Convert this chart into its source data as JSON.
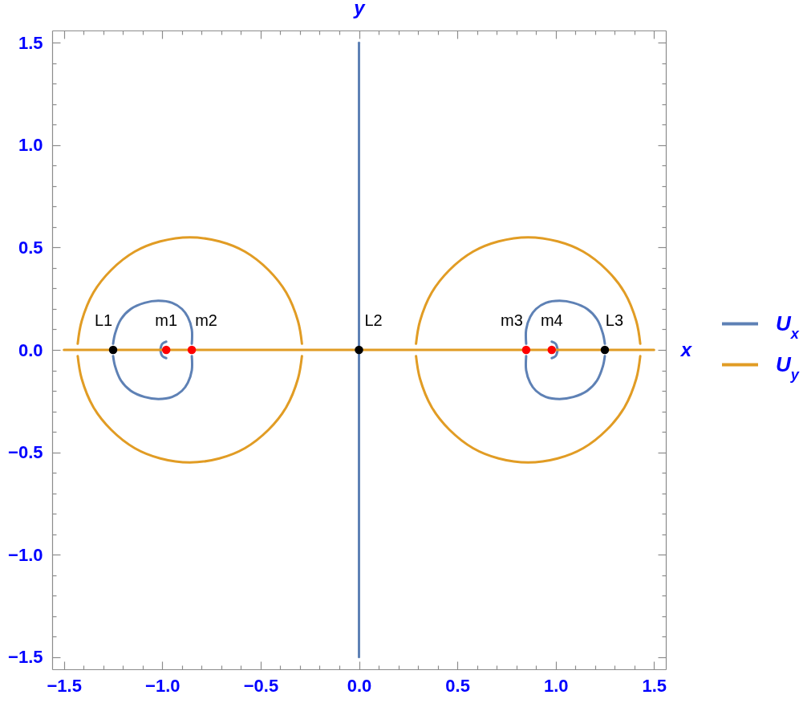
{
  "chart_data": {
    "type": "line",
    "xlabel": "x",
    "ylabel": "y",
    "legend": "right",
    "xlim": [
      -1.56,
      1.56
    ],
    "ylim": [
      -1.56,
      1.56
    ],
    "xticks": [
      {
        "value": -1.5,
        "label": "−1.5"
      },
      {
        "value": -1.4,
        "label": null
      },
      {
        "value": -1.3,
        "label": null
      },
      {
        "value": -1.2,
        "label": null
      },
      {
        "value": -1.1,
        "label": null
      },
      {
        "value": -1,
        "label": "−1.0"
      },
      {
        "value": -0.9,
        "label": null
      },
      {
        "value": -0.8,
        "label": null
      },
      {
        "value": -0.7,
        "label": null
      },
      {
        "value": -0.6,
        "label": null
      },
      {
        "value": -0.5,
        "label": "−0.5"
      },
      {
        "value": -0.4,
        "label": null
      },
      {
        "value": -0.3,
        "label": null
      },
      {
        "value": -0.2,
        "label": null
      },
      {
        "value": -0.1,
        "label": null
      },
      {
        "value": 0,
        "label": "0.0"
      },
      {
        "value": 0.1,
        "label": null
      },
      {
        "value": 0.2,
        "label": null
      },
      {
        "value": 0.3,
        "label": null
      },
      {
        "value": 0.4,
        "label": null
      },
      0.5,
      {
        "value": 0.6,
        "label": null
      },
      {
        "value": 0.7,
        "label": null
      },
      {
        "value": 0.8,
        "label": null
      },
      {
        "value": 0.9,
        "label": null
      },
      {
        "value": 1,
        "label": "1.0"
      },
      {
        "value": 1.1,
        "label": null
      },
      {
        "value": 1.2,
        "label": null
      },
      {
        "value": 1.3,
        "label": null
      },
      {
        "value": 1.4,
        "label": null
      },
      1.5
    ],
    "yticks": [
      {
        "value": -1.5,
        "label": "−1.5"
      },
      {
        "value": -1.4,
        "label": null
      },
      {
        "value": -1.3,
        "label": null
      },
      {
        "value": -1.2,
        "label": null
      },
      {
        "value": -1.1,
        "label": null
      },
      {
        "value": -1,
        "label": "−1.0"
      },
      {
        "value": -0.9,
        "label": null
      },
      {
        "value": -0.8,
        "label": null
      },
      {
        "value": -0.7,
        "label": null
      },
      {
        "value": -0.6,
        "label": null
      },
      {
        "value": -0.5,
        "label": "−0.5"
      },
      {
        "value": -0.4,
        "label": null
      },
      {
        "value": -0.3,
        "label": null
      },
      {
        "value": -0.2,
        "label": null
      },
      {
        "value": -0.1,
        "label": null
      },
      {
        "value": 0,
        "label": "0.0"
      },
      {
        "value": 0.1,
        "label": null
      },
      {
        "value": 0.2,
        "label": null
      },
      {
        "value": 0.3,
        "label": null
      },
      {
        "value": 0.4,
        "label": null
      },
      0.5,
      {
        "value": 0.6,
        "label": null
      },
      {
        "value": 0.7,
        "label": null
      },
      {
        "value": 0.8,
        "label": null
      },
      {
        "value": 0.9,
        "label": null
      },
      {
        "value": 1,
        "label": "1.0"
      },
      {
        "value": 1.1,
        "label": null
      },
      {
        "value": 1.2,
        "label": null
      },
      {
        "value": 1.3,
        "label": null
      },
      {
        "value": 1.4,
        "label": null
      },
      1.5
    ],
    "series": [
      {
        "name": "U$_{x}$",
        "color": "#5e81b5",
        "x": [
          0,
          0
        ],
        "values": [
          -1.5,
          1.5
        ]
      },
      {
        "color": "#5e81b5",
        "x": [
          -1.25,
          -1.24,
          -1.21,
          -1.16,
          -1.09,
          -1.02,
          -0.95,
          -0.9,
          -0.87,
          -0.85,
          -0.85
        ],
        "values": [
          0.03,
          0.08,
          0.15,
          0.2,
          0.23,
          0.24,
          0.23,
          0.2,
          0.16,
          0.1,
          0.03
        ]
      },
      {
        "color": "#5e81b5",
        "x": [
          -1.25,
          -1.24,
          -1.21,
          -1.16,
          -1.09,
          -1.02,
          -0.95,
          -0.9,
          -0.87,
          -0.85,
          -0.85
        ],
        "values": [
          -0.03,
          -0.08,
          -0.15,
          -0.2,
          -0.23,
          -0.24,
          -0.23,
          -0.2,
          -0.16,
          -0.1,
          -0.03
        ]
      },
      {
        "color": "#5e81b5",
        "x": [
          0.85,
          0.85,
          0.87,
          0.9,
          0.95,
          1.02,
          1.09,
          1.16,
          1.21,
          1.24,
          1.25
        ],
        "values": [
          0.03,
          0.1,
          0.16,
          0.2,
          0.23,
          0.24,
          0.23,
          0.2,
          0.15,
          0.08,
          0.03
        ]
      },
      {
        "color": "#5e81b5",
        "x": [
          0.85,
          0.85,
          0.87,
          0.9,
          0.95,
          1.02,
          1.09,
          1.16,
          1.21,
          1.24,
          1.25
        ],
        "values": [
          -0.03,
          -0.1,
          -0.16,
          -0.2,
          -0.23,
          -0.24,
          -0.23,
          -0.2,
          -0.15,
          -0.08,
          -0.03
        ]
      },
      {
        "color": "#5e81b5",
        "x": [
          -1.01,
          -1.0,
          -0.98
        ],
        "values": [
          0,
          0.03,
          0.04
        ]
      },
      {
        "color": "#5e81b5",
        "x": [
          -1.01,
          -1.0,
          -0.98
        ],
        "values": [
          0,
          -0.03,
          -0.04
        ]
      },
      {
        "color": "#5e81b5",
        "x": [
          0.98,
          1.0,
          1.01
        ],
        "values": [
          0.04,
          0.03,
          0
        ]
      },
      {
        "color": "#5e81b5",
        "x": [
          0.98,
          1.0,
          1.01
        ],
        "values": [
          -0.04,
          -0.03,
          0
        ]
      },
      {
        "name": "U$_{y}$",
        "color": "#e19c24",
        "x": [
          -1.5,
          1.5
        ],
        "values": [
          0,
          0
        ]
      },
      {
        "color": "#e19c24",
        "x": [
          -1.43,
          -1.41,
          -1.35,
          -1.26,
          -1.14,
          -1.01,
          -0.86,
          -0.71,
          -0.58,
          -0.46,
          -0.37,
          -0.31,
          -0.29
        ],
        "values": [
          0.03,
          0.14,
          0.28,
          0.39,
          0.48,
          0.53,
          0.55,
          0.53,
          0.48,
          0.39,
          0.28,
          0.14,
          0.03
        ]
      },
      {
        "color": "#e19c24",
        "x": [
          -1.43,
          -1.41,
          -1.35,
          -1.26,
          -1.14,
          -1.01,
          -0.86,
          -0.71,
          -0.58,
          -0.46,
          -0.37,
          -0.31,
          -0.29
        ],
        "values": [
          -0.03,
          -0.14,
          -0.28,
          -0.39,
          -0.48,
          -0.53,
          -0.55,
          -0.53,
          -0.48,
          -0.39,
          -0.28,
          -0.14,
          -0.03
        ]
      },
      {
        "color": "#e19c24",
        "x": [
          0.29,
          0.31,
          0.37,
          0.46,
          0.58,
          0.71,
          0.86,
          1.01,
          1.14,
          1.26,
          1.35,
          1.41,
          1.43
        ],
        "values": [
          0.03,
          0.14,
          0.28,
          0.39,
          0.48,
          0.53,
          0.55,
          0.53,
          0.48,
          0.39,
          0.28,
          0.14,
          0.03
        ]
      },
      {
        "color": "#e19c24",
        "x": [
          0.29,
          0.31,
          0.37,
          0.46,
          0.58,
          0.71,
          0.86,
          1.01,
          1.14,
          1.26,
          1.35,
          1.41,
          1.43
        ],
        "values": [
          -0.03,
          -0.14,
          -0.28,
          -0.39,
          -0.48,
          -0.53,
          -0.55,
          -0.53,
          -0.48,
          -0.39,
          -0.28,
          -0.14,
          -0.03
        ]
      },
      {
        "type": "scatter",
        "marker": "circle",
        "color": "#000000",
        "x": [
          -1.25,
          0,
          1.25
        ],
        "values": [
          0,
          0,
          0
        ]
      },
      {
        "type": "scatter",
        "marker": "circle",
        "color": "#ff0000",
        "x": [
          -0.98,
          -0.85,
          0.85,
          0.98
        ],
        "values": [
          0,
          0,
          0,
          0
        ]
      }
    ],
    "annotations": [
      {
        "text": "L1",
        "x": -1.25,
        "y": 0
      },
      {
        "text": "m1",
        "x": -0.98,
        "y": 0
      },
      {
        "text": "m2",
        "x": -0.85,
        "y": 0
      },
      {
        "text": "L2",
        "x": 0,
        "y": 0
      },
      {
        "text": "m3",
        "x": 0.85,
        "y": 0
      },
      {
        "text": "m4",
        "x": 0.98,
        "y": 0
      },
      {
        "text": "L3",
        "x": 1.25,
        "y": 0
      }
    ]
  }
}
